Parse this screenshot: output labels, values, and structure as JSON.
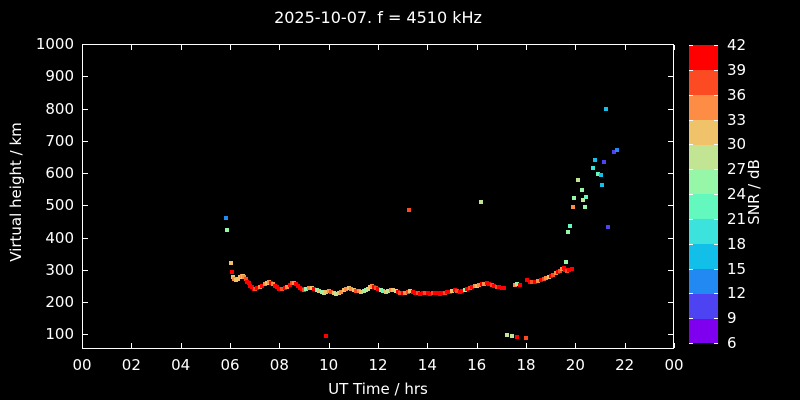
{
  "chart_data": {
    "type": "scatter",
    "title": "2025-10-07. f = 4510 kHz",
    "xlabel": "UT Time / hrs",
    "ylabel": "Virtual height / km",
    "xlim": [
      0,
      24
    ],
    "ylim": [
      55,
      1000
    ],
    "grid": false,
    "background_color": "#000000",
    "text_color": "#ffffff",
    "x_tick_hours": [
      0,
      2,
      4,
      6,
      8,
      10,
      12,
      14,
      16,
      18,
      20,
      22,
      24
    ],
    "x_tick_labels": [
      "00",
      "02",
      "04",
      "06",
      "08",
      "10",
      "12",
      "14",
      "16",
      "18",
      "20",
      "22",
      "00"
    ],
    "y_tick_values": [
      100,
      200,
      300,
      400,
      500,
      600,
      700,
      800,
      900,
      1000
    ],
    "colorbar": {
      "label": "SNR / dB",
      "min": 6,
      "max": 42,
      "step": 3,
      "tick_labels": [
        6,
        9,
        12,
        15,
        18,
        21,
        24,
        27,
        30,
        33,
        36,
        39,
        42
      ],
      "colors_low_to_high": [
        "#7E00EE",
        "#4D43F2",
        "#2389F2",
        "#12BFE8",
        "#3BE3DC",
        "#63F8BE",
        "#97F7A9",
        "#C2E593",
        "#F0C26A",
        "#FD8D45",
        "#FC4A22",
        "#FF0000"
      ]
    },
    "point_fields": [
      "ut_hour",
      "virtual_height_km",
      "snr_db"
    ],
    "points": [
      [
        5.83,
        460,
        13
      ],
      [
        5.87,
        425,
        25
      ],
      [
        6.05,
        323,
        31
      ],
      [
        6.09,
        294,
        40
      ],
      [
        6.13,
        279,
        31
      ],
      [
        6.18,
        272,
        34
      ],
      [
        6.26,
        269,
        31
      ],
      [
        6.34,
        272,
        31
      ],
      [
        6.42,
        277,
        31
      ],
      [
        6.48,
        281,
        34
      ],
      [
        6.53,
        282,
        31
      ],
      [
        6.58,
        279,
        34
      ],
      [
        6.64,
        271,
        37
      ],
      [
        6.69,
        264,
        40
      ],
      [
        6.76,
        258,
        40
      ],
      [
        6.83,
        251,
        40
      ],
      [
        6.89,
        246,
        40
      ],
      [
        6.96,
        242,
        40
      ],
      [
        7.03,
        240,
        37
      ],
      [
        7.11,
        243,
        40
      ],
      [
        7.2,
        247,
        34
      ],
      [
        7.3,
        251,
        40
      ],
      [
        7.4,
        255,
        34
      ],
      [
        7.5,
        259,
        31
      ],
      [
        7.58,
        262,
        34
      ],
      [
        7.66,
        260,
        40
      ],
      [
        7.73,
        255,
        34
      ],
      [
        7.81,
        250,
        40
      ],
      [
        7.9,
        246,
        40
      ],
      [
        8.0,
        242,
        40
      ],
      [
        8.1,
        240,
        37
      ],
      [
        8.21,
        243,
        40
      ],
      [
        8.31,
        248,
        34
      ],
      [
        8.42,
        254,
        40
      ],
      [
        8.5,
        258,
        37
      ],
      [
        8.58,
        261,
        34
      ],
      [
        8.67,
        256,
        40
      ],
      [
        8.76,
        250,
        40
      ],
      [
        8.84,
        245,
        40
      ],
      [
        8.92,
        241,
        40
      ],
      [
        9.01,
        239,
        37
      ],
      [
        9.1,
        240,
        25
      ],
      [
        9.2,
        243,
        34
      ],
      [
        9.31,
        245,
        31
      ],
      [
        9.42,
        241,
        40
      ],
      [
        9.51,
        238,
        25
      ],
      [
        9.61,
        236,
        31
      ],
      [
        9.71,
        233,
        25
      ],
      [
        9.81,
        230,
        28
      ],
      [
        9.88,
        95,
        40
      ],
      [
        9.91,
        232,
        31
      ],
      [
        10.01,
        234,
        34
      ],
      [
        10.11,
        231,
        37
      ],
      [
        10.21,
        228,
        31
      ],
      [
        10.31,
        226,
        28
      ],
      [
        10.42,
        229,
        31
      ],
      [
        10.52,
        233,
        34
      ],
      [
        10.62,
        237,
        31
      ],
      [
        10.72,
        241,
        34
      ],
      [
        10.82,
        244,
        31
      ],
      [
        10.92,
        241,
        34
      ],
      [
        11.01,
        238,
        31
      ],
      [
        11.11,
        236,
        37
      ],
      [
        11.21,
        234,
        34
      ],
      [
        11.31,
        231,
        31
      ],
      [
        11.42,
        234,
        28
      ],
      [
        11.51,
        238,
        25
      ],
      [
        11.59,
        242,
        28
      ],
      [
        11.68,
        246,
        31
      ],
      [
        11.76,
        249,
        34
      ],
      [
        11.84,
        246,
        40
      ],
      [
        11.92,
        243,
        37
      ],
      [
        12.01,
        240,
        40
      ],
      [
        12.11,
        237,
        25
      ],
      [
        12.21,
        234,
        22
      ],
      [
        12.31,
        232,
        31
      ],
      [
        12.42,
        236,
        28
      ],
      [
        12.51,
        239,
        34
      ],
      [
        12.61,
        237,
        31
      ],
      [
        12.71,
        234,
        28
      ],
      [
        12.81,
        232,
        40
      ],
      [
        12.91,
        230,
        37
      ],
      [
        13.01,
        228,
        40
      ],
      [
        13.11,
        230,
        34
      ],
      [
        13.21,
        233,
        37
      ],
      [
        13.27,
        487,
        37
      ],
      [
        13.31,
        236,
        31
      ],
      [
        13.42,
        233,
        40
      ],
      [
        13.51,
        230,
        40
      ],
      [
        13.61,
        228,
        37
      ],
      [
        13.71,
        226,
        40
      ],
      [
        13.81,
        228,
        40
      ],
      [
        13.92,
        230,
        37
      ],
      [
        14.01,
        227,
        40
      ],
      [
        14.11,
        225,
        40
      ],
      [
        14.21,
        227,
        37
      ],
      [
        14.31,
        229,
        40
      ],
      [
        14.42,
        227,
        40
      ],
      [
        14.51,
        225,
        40
      ],
      [
        14.61,
        227,
        40
      ],
      [
        14.71,
        229,
        37
      ],
      [
        14.81,
        231,
        40
      ],
      [
        14.92,
        233,
        40
      ],
      [
        15.01,
        235,
        31
      ],
      [
        15.11,
        237,
        40
      ],
      [
        15.21,
        235,
        37
      ],
      [
        15.31,
        233,
        40
      ],
      [
        15.42,
        236,
        40
      ],
      [
        15.51,
        239,
        25
      ],
      [
        15.61,
        242,
        40
      ],
      [
        15.71,
        244,
        37
      ],
      [
        15.81,
        246,
        40
      ],
      [
        15.92,
        249,
        34
      ],
      [
        16.01,
        251,
        31
      ],
      [
        16.11,
        253,
        34
      ],
      [
        16.17,
        511,
        28
      ],
      [
        16.21,
        255,
        40
      ],
      [
        16.31,
        257,
        34
      ],
      [
        16.42,
        259,
        40
      ],
      [
        16.51,
        257,
        40
      ],
      [
        16.61,
        254,
        37
      ],
      [
        16.71,
        251,
        40
      ],
      [
        16.81,
        248,
        37
      ],
      [
        16.92,
        246,
        40
      ],
      [
        17.01,
        244,
        40
      ],
      [
        17.1,
        245,
        40
      ],
      [
        17.22,
        99,
        28
      ],
      [
        17.42,
        95,
        28
      ],
      [
        17.55,
        254,
        34
      ],
      [
        17.65,
        256,
        25
      ],
      [
        17.65,
        92,
        40
      ],
      [
        17.76,
        253,
        40
      ],
      [
        18.0,
        89,
        37
      ],
      [
        18.05,
        268,
        40
      ],
      [
        18.15,
        264,
        40
      ],
      [
        18.25,
        262,
        37
      ],
      [
        18.38,
        264,
        40
      ],
      [
        18.5,
        266,
        34
      ],
      [
        18.61,
        269,
        40
      ],
      [
        18.71,
        272,
        37
      ],
      [
        18.81,
        275,
        34
      ],
      [
        18.92,
        278,
        31
      ],
      [
        19.01,
        281,
        40
      ],
      [
        19.11,
        285,
        37
      ],
      [
        19.21,
        290,
        34
      ],
      [
        19.3,
        294,
        40
      ],
      [
        19.38,
        298,
        37
      ],
      [
        19.46,
        302,
        34
      ],
      [
        19.53,
        306,
        40
      ],
      [
        19.6,
        300,
        40
      ],
      [
        19.68,
        296,
        37
      ],
      [
        19.76,
        300,
        40
      ],
      [
        19.88,
        302,
        40
      ],
      [
        19.62,
        324,
        25
      ],
      [
        19.72,
        419,
        25
      ],
      [
        19.78,
        436,
        22
      ],
      [
        19.92,
        494,
        34
      ],
      [
        19.96,
        522,
        25
      ],
      [
        20.1,
        580,
        28
      ],
      [
        20.26,
        547,
        25
      ],
      [
        20.33,
        516,
        28
      ],
      [
        20.4,
        496,
        25
      ],
      [
        20.43,
        525,
        22
      ],
      [
        20.7,
        617,
        19
      ],
      [
        20.8,
        640,
        16
      ],
      [
        20.93,
        598,
        22
      ],
      [
        21.03,
        593,
        16
      ],
      [
        21.07,
        563,
        16
      ],
      [
        21.16,
        634,
        10
      ],
      [
        21.24,
        799,
        16
      ],
      [
        21.34,
        432,
        10
      ],
      [
        21.56,
        665,
        10
      ],
      [
        21.7,
        673,
        13
      ]
    ]
  }
}
